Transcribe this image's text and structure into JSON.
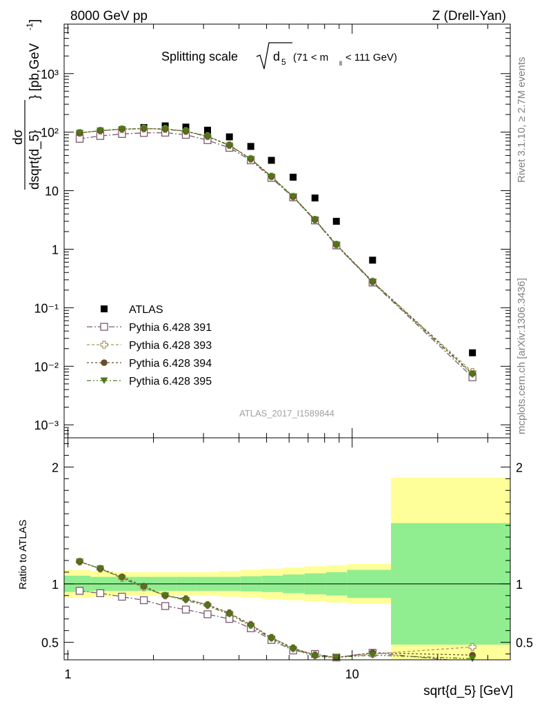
{
  "header": {
    "left": "8000 GeV pp",
    "right": "Z (Drell-Yan)"
  },
  "title": {
    "main": "Splitting scale",
    "var": "d",
    "sub": "5",
    "cut": "(71 < m",
    "cut_sub": "ll",
    "cut_end": " < 111 GeV)"
  },
  "side": {
    "rivet": "Rivet 3.1.10, ≥ 2.7M events",
    "mcplots": "mcplots.cern.ch [arXiv:1306.3436]"
  },
  "analysis_id": "ATLAS_2017_I1589844",
  "colors": {
    "atlas": "#000000",
    "p391": "#7a5870",
    "p393": "#a29763",
    "p394": "#6b4c2a",
    "p395": "#4a7a18",
    "band_green": "#90ee90",
    "band_yellow": "#ffff99"
  },
  "chart_data": [
    {
      "type": "scatter",
      "scale": "log-log",
      "xlim": [
        0.97,
        36
      ],
      "ylim": [
        0.0006,
        7000
      ],
      "xlabel": "sqrt{d_5} [GeV]",
      "ylabel": "dσ/dsqrt{d_5} [pb,GeV⁻¹]",
      "y_ticks": [
        "10⁻³",
        "10⁻²",
        "10⁻¹",
        "1",
        "10",
        "10²",
        "10³"
      ],
      "legend_position": "lower-left",
      "x": [
        1.1,
        1.3,
        1.55,
        1.85,
        2.2,
        2.6,
        3.1,
        3.7,
        4.4,
        5.2,
        6.2,
        7.4,
        8.8,
        11.8,
        26.5
      ],
      "series": [
        {
          "name": "ATLAS",
          "marker": "filled-square",
          "values": [
            82,
            95,
            110,
            120,
            128,
            122,
            108,
            83,
            57,
            33,
            17,
            7.5,
            3.0,
            0.65,
            0.017
          ]
        },
        {
          "name": "Pythia 6.428 391",
          "marker": "open-square",
          "values": [
            77,
            86,
            93,
            97,
            98,
            90,
            73,
            54,
            33,
            16.5,
            7.7,
            3.1,
            1.16,
            0.27,
            0.0065
          ]
        },
        {
          "name": "Pythia 6.428 393",
          "marker": "open-cross",
          "values": [
            97,
            106,
            112,
            115,
            113,
            104,
            85,
            60,
            35,
            17.5,
            7.9,
            3.2,
            1.2,
            0.28,
            0.008
          ]
        },
        {
          "name": "Pythia 6.428 394",
          "marker": "filled-circle",
          "values": [
            97,
            106,
            113,
            115,
            113,
            104,
            85,
            60,
            35,
            17.5,
            7.9,
            3.2,
            1.2,
            0.28,
            0.0075
          ]
        },
        {
          "name": "Pythia 6.428 395",
          "marker": "filled-triangle-down",
          "values": [
            97,
            106,
            112,
            115,
            112,
            103,
            84,
            59,
            34.5,
            17.3,
            7.8,
            3.15,
            1.18,
            0.275,
            0.0072
          ]
        }
      ]
    },
    {
      "type": "scatter",
      "scale": "log-x",
      "xlim": [
        0.97,
        36
      ],
      "ylim": [
        0.35,
        2.25
      ],
      "ylabel": "Ratio to ATLAS",
      "xlabel": "sqrt{d_5} [GeV]",
      "x_ticks": [
        "1",
        "10"
      ],
      "y_ticks": [
        "0.5",
        "1",
        "2"
      ],
      "bands": {
        "edges": [
          0.97,
          1.2,
          1.45,
          1.7,
          2.0,
          2.4,
          2.85,
          3.4,
          4.05,
          4.8,
          5.7,
          6.8,
          8.1,
          9.6,
          13.7,
          36
        ],
        "green_half": [
          0.07,
          0.06,
          0.06,
          0.06,
          0.06,
          0.06,
          0.06,
          0.06,
          0.065,
          0.07,
          0.08,
          0.09,
          0.1,
          0.12,
          0.52
        ],
        "yellow_half": [
          0.12,
          0.11,
          0.1,
          0.1,
          0.1,
          0.1,
          0.1,
          0.11,
          0.12,
          0.13,
          0.14,
          0.15,
          0.16,
          0.17,
          0.91
        ]
      },
      "x": [
        1.1,
        1.3,
        1.55,
        1.85,
        2.2,
        2.6,
        3.1,
        3.7,
        4.4,
        5.2,
        6.2,
        7.4,
        8.8,
        11.8,
        26.5
      ],
      "series": [
        {
          "name": "Pythia 6.428 391",
          "values": [
            0.94,
            0.92,
            0.89,
            0.86,
            0.81,
            0.78,
            0.74,
            0.7,
            0.62,
            0.52,
            0.43,
            0.4,
            0.37,
            0.41,
            0.33
          ]
        },
        {
          "name": "Pythia 6.428 393",
          "values": [
            1.19,
            1.13,
            1.05,
            0.97,
            0.9,
            0.87,
            0.82,
            0.75,
            0.65,
            0.54,
            0.45,
            0.39,
            0.37,
            0.4,
            0.46
          ]
        },
        {
          "name": "Pythia 6.428 394",
          "values": [
            1.19,
            1.13,
            1.06,
            0.98,
            0.9,
            0.87,
            0.82,
            0.75,
            0.65,
            0.54,
            0.45,
            0.39,
            0.37,
            0.41,
            0.39
          ]
        },
        {
          "name": "Pythia 6.428 395",
          "values": [
            1.19,
            1.13,
            1.05,
            0.97,
            0.9,
            0.86,
            0.81,
            0.74,
            0.64,
            0.53,
            0.44,
            0.38,
            0.37,
            0.39,
            0.36
          ]
        }
      ]
    }
  ]
}
